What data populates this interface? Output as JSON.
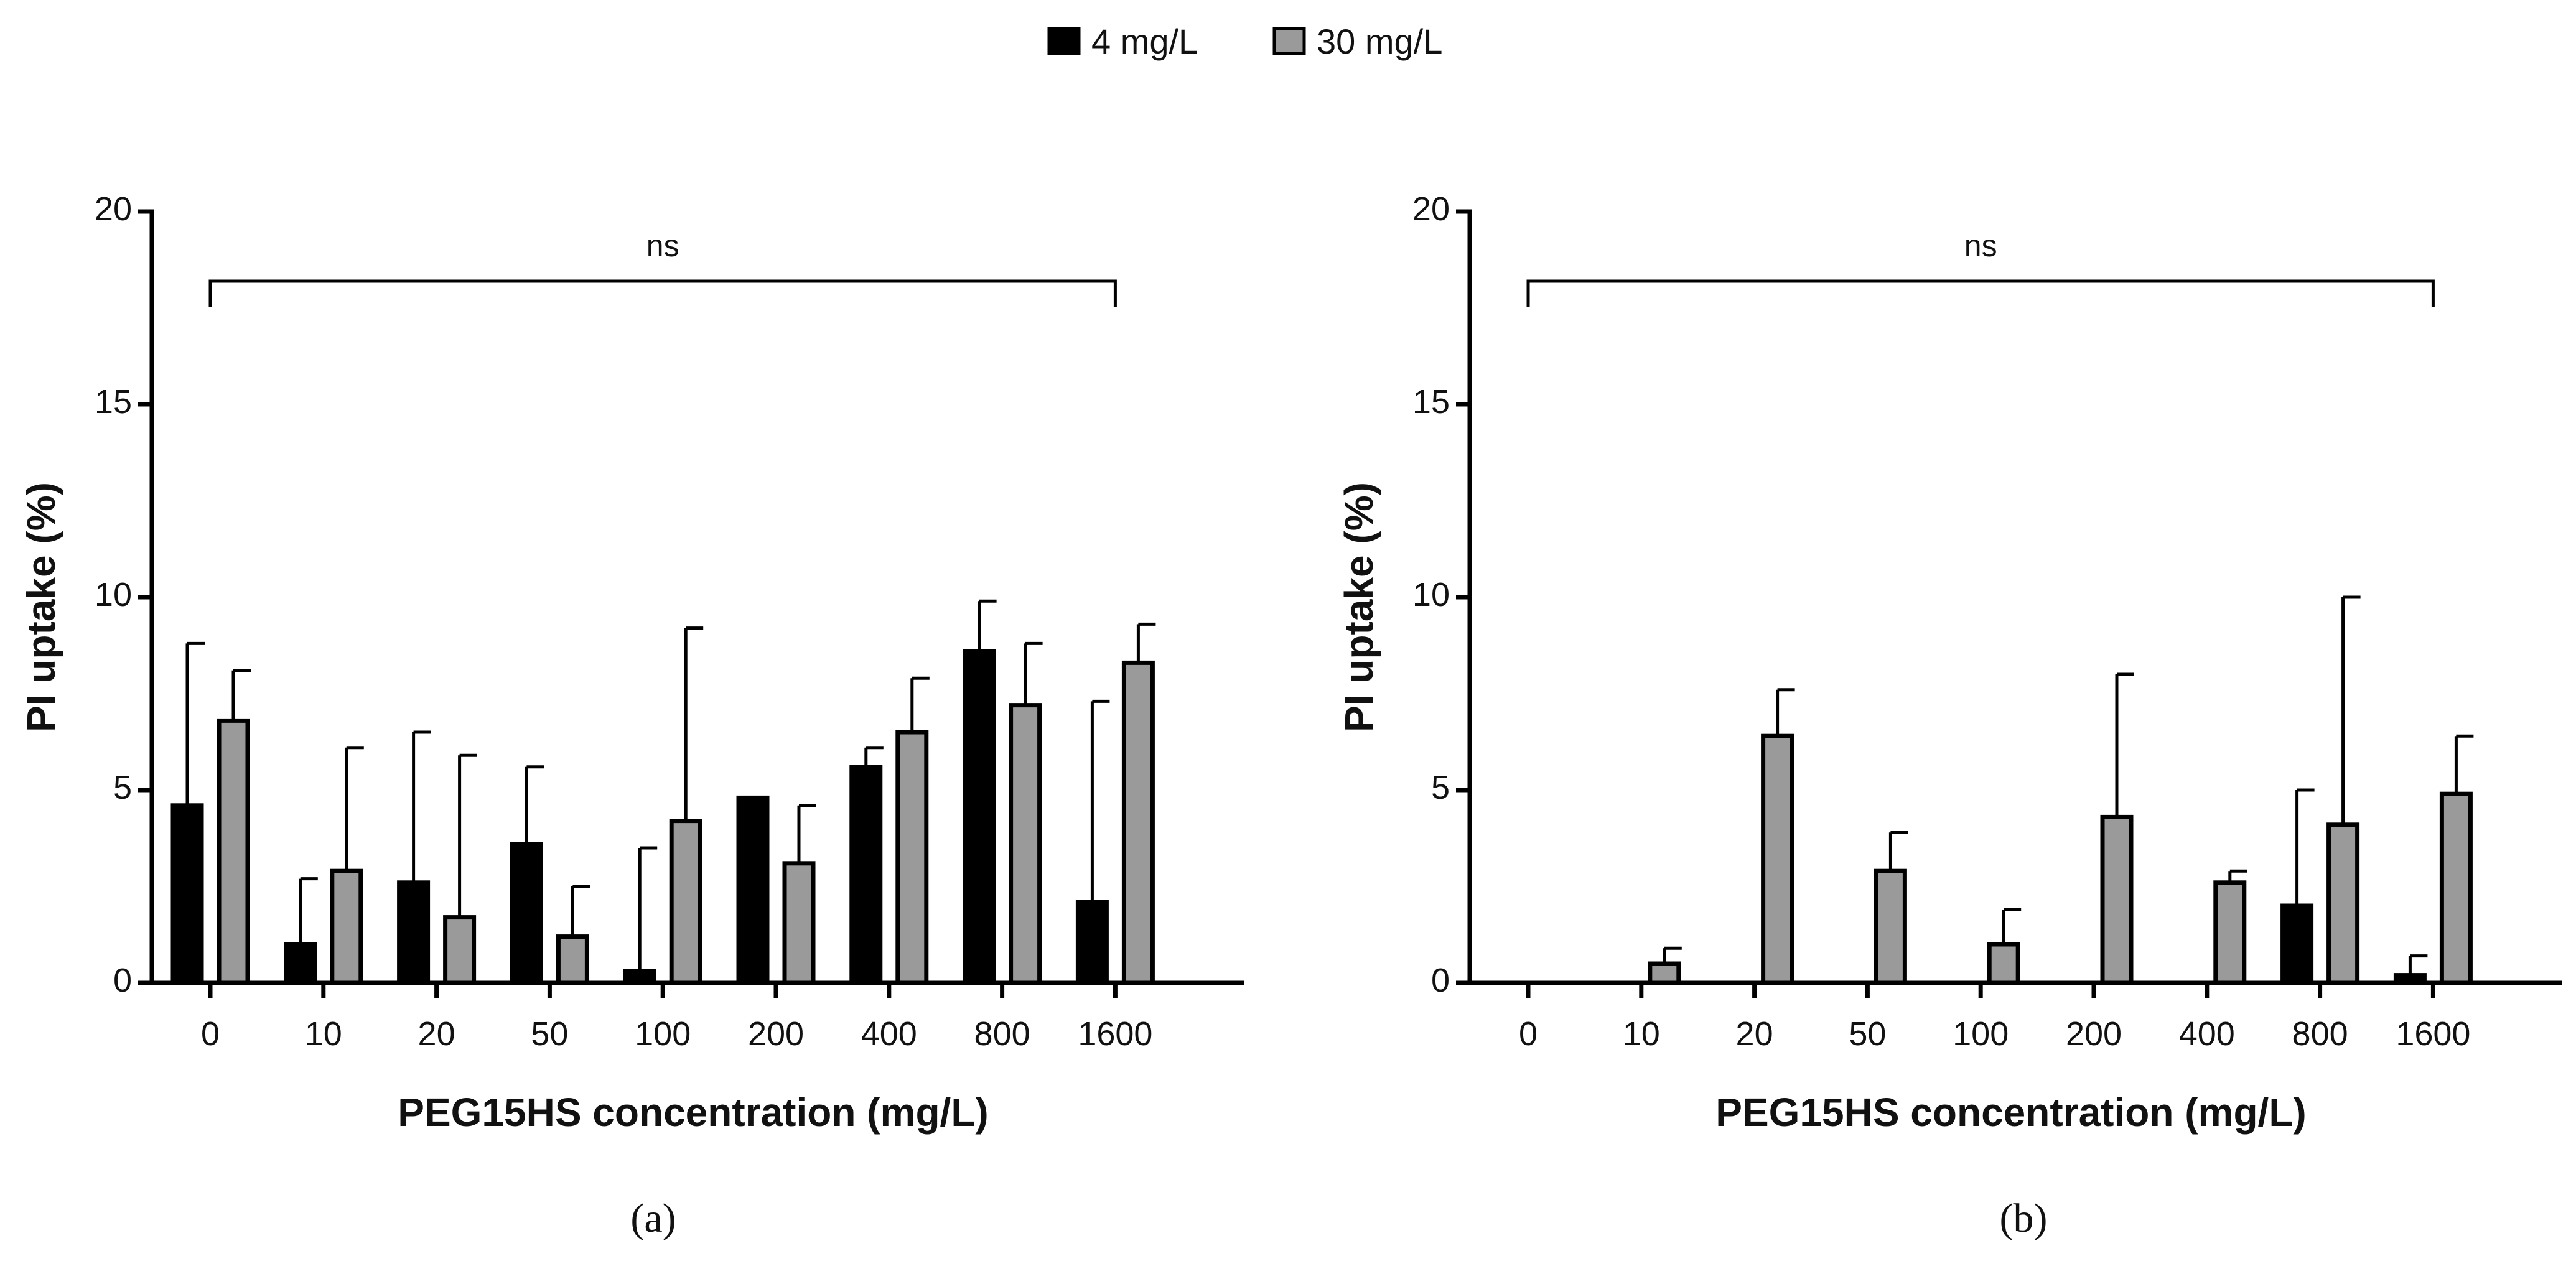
{
  "legend": [
    {
      "label": "4 mg/L",
      "color": "#000000"
    },
    {
      "label": "30 mg/L",
      "color": "#9a9a9a"
    }
  ],
  "chart_data": [
    {
      "type": "bar",
      "panel": "(a)",
      "categories": [
        "0",
        "10",
        "20",
        "50",
        "100",
        "200",
        "400",
        "800",
        "1600"
      ],
      "series": [
        {
          "name": "4 mg/L",
          "color": "#000000",
          "values": [
            4.6,
            1.0,
            2.6,
            3.6,
            0.3,
            4.8,
            5.6,
            8.6,
            2.1
          ],
          "errors": [
            4.2,
            1.7,
            3.9,
            2.0,
            3.2,
            0.0,
            0.5,
            1.3,
            5.2
          ]
        },
        {
          "name": "30 mg/L",
          "color": "#9a9a9a",
          "values": [
            6.8,
            2.9,
            1.7,
            1.2,
            4.2,
            3.1,
            6.5,
            7.2,
            8.3
          ],
          "errors": [
            1.3,
            3.2,
            4.2,
            1.3,
            5.0,
            1.5,
            1.4,
            1.6,
            1.0
          ]
        }
      ],
      "xlabel": "PEG15HS concentration (mg/L)",
      "ylabel": "PI uptake (%)",
      "ylim": [
        0,
        20
      ],
      "yticks": [
        "0",
        "5",
        "10",
        "15",
        "20"
      ],
      "annotation": "ns"
    },
    {
      "type": "bar",
      "panel": "(b)",
      "categories": [
        "0",
        "10",
        "20",
        "50",
        "100",
        "200",
        "400",
        "800",
        "1600"
      ],
      "series": [
        {
          "name": "4 mg/L",
          "color": "#000000",
          "values": [
            0,
            0,
            0,
            0,
            0,
            0,
            0,
            2.0,
            0.2
          ],
          "errors": [
            0,
            0,
            0,
            0,
            0,
            0,
            0,
            3.0,
            0.5
          ]
        },
        {
          "name": "30 mg/L",
          "color": "#9a9a9a",
          "values": [
            0,
            0.5,
            6.4,
            2.9,
            1.0,
            4.3,
            2.6,
            4.1,
            4.9
          ],
          "errors": [
            0,
            0.4,
            1.2,
            1.0,
            0.9,
            3.7,
            0.3,
            5.9,
            1.5
          ]
        }
      ],
      "xlabel": "PEG15HS concentration (mg/L)",
      "ylabel": "PI uptake (%)",
      "ylim": [
        0,
        20
      ],
      "yticks": [
        "0",
        "5",
        "10",
        "15",
        "20"
      ],
      "annotation": "ns"
    }
  ]
}
